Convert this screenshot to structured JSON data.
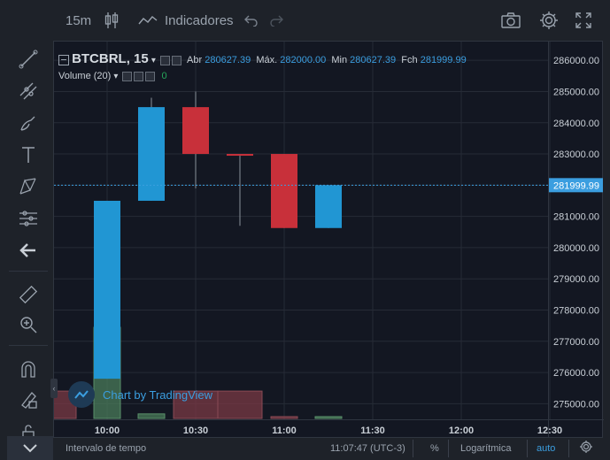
{
  "toolbar": {
    "interval": "15m",
    "indicators_label": "Indicadores"
  },
  "legend": {
    "symbol": "BTCBRL, 15",
    "open_label": "Abr",
    "open": "280627.39",
    "high_label": "Máx.",
    "high": "282000.00",
    "low_label": "Min",
    "low": "280627.39",
    "close_label": "Fch",
    "close": "281999.99",
    "volume_label": "Volume (20)",
    "volume_value": "0"
  },
  "watermark": "Chart by TradingView",
  "last_price": "281999.99",
  "bottom": {
    "time_interval": "Intervalo de tempo",
    "clock": "11:07:47 (UTC-3)",
    "percent": "%",
    "log": "Logarítmica",
    "auto": "auto"
  },
  "colors": {
    "up": "#2196d3",
    "down": "#c8303a",
    "vol_up": "#4a7b5a",
    "vol_down": "#7a3a44",
    "accent": "#3b9ee0"
  },
  "chart_data": {
    "type": "candlestick",
    "y_ticks": [
      "286000.00",
      "285000.00",
      "284000.00",
      "283000.00",
      "282000.00",
      "281000.00",
      "280000.00",
      "279000.00",
      "278000.00",
      "277000.00",
      "276000.00",
      "275000.00"
    ],
    "x_ticks": [
      "10:00",
      "10:30",
      "11:00",
      "11:30",
      "12:00",
      "12:30"
    ],
    "ylim": [
      274500,
      286600
    ],
    "candles": [
      {
        "t": "10:00",
        "o": 275800,
        "h": 281500,
        "l": 275800,
        "c": 281500
      },
      {
        "t": "10:15",
        "o": 281500,
        "h": 284800,
        "l": 281500,
        "c": 284500
      },
      {
        "t": "10:30",
        "o": 284500,
        "h": 285000,
        "l": 281900,
        "c": 283000
      },
      {
        "t": "10:45",
        "o": 283000,
        "h": 283000,
        "l": 280700,
        "c": 282950
      },
      {
        "t": "11:00",
        "o": 283000,
        "h": 283000,
        "l": 280627.39,
        "c": 280627.39
      },
      {
        "t": "11:15",
        "o": 280627.39,
        "h": 282000,
        "l": 280627.39,
        "c": 281999.99
      }
    ],
    "volume": [
      {
        "t": "09:45",
        "v": 0.3,
        "up": false
      },
      {
        "t": "10:00",
        "v": 1.0,
        "up": true
      },
      {
        "t": "10:15",
        "v": 0.05,
        "up": true
      },
      {
        "t": "10:30",
        "v": 0.3,
        "up": false
      },
      {
        "t": "10:45",
        "v": 0.3,
        "up": false
      },
      {
        "t": "11:00",
        "v": 0.02,
        "up": false
      },
      {
        "t": "11:15",
        "v": 0.02,
        "up": true
      }
    ]
  }
}
